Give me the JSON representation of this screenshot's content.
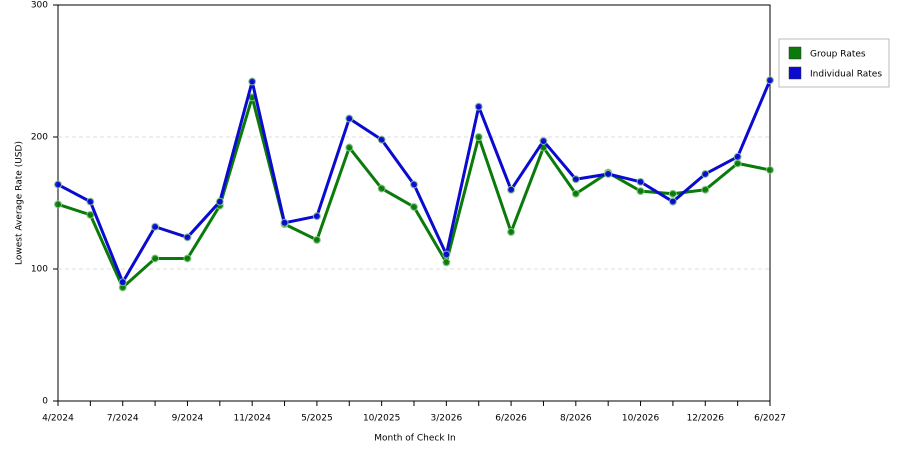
{
  "chart_data": {
    "type": "line",
    "xlabel": "Month of Check In",
    "ylabel": "Lowest Average Rate (USD)",
    "categories": [
      "4/2024",
      null,
      "7/2024",
      null,
      "9/2024",
      null,
      "11/2024",
      null,
      "5/2025",
      null,
      "10/2025",
      null,
      "3/2026",
      null,
      "6/2026",
      null,
      "8/2026",
      null,
      "10/2026",
      null,
      "12/2026",
      null,
      "6/2027"
    ],
    "series": [
      {
        "name": "Group Rates",
        "color": "#0a7a0a",
        "values": [
          149,
          141,
          86,
          108,
          108,
          148,
          230,
          134,
          122,
          192,
          161,
          147,
          105,
          200,
          128,
          192,
          157,
          173,
          159,
          157,
          160,
          180,
          175
        ]
      },
      {
        "name": "Individual Rates",
        "color": "#0a0ad0",
        "values": [
          164,
          151,
          90,
          132,
          124,
          151,
          242,
          135,
          140,
          214,
          198,
          164,
          111,
          223,
          160,
          197,
          168,
          172,
          166,
          151,
          172,
          185,
          243
        ]
      }
    ],
    "ylim": [
      0,
      300
    ],
    "yticks": [
      0,
      100,
      200,
      300
    ],
    "grid": true,
    "legend": "right"
  }
}
